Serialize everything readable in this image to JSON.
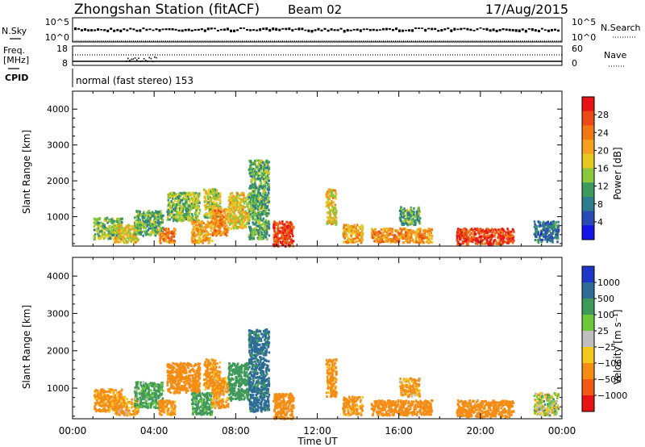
{
  "header": {
    "station": "Zhongshan Station (fitACF)",
    "beam": "Beam 02",
    "date": "17/Aug/2015"
  },
  "panels": {
    "nsky": {
      "label": "N.Sky",
      "tick_top": "10^5",
      "tick_bottom": "10^0"
    },
    "nsearch": {
      "label": "N.Search",
      "tick_top": "10^5",
      "tick_bottom": "10^0"
    },
    "freq": {
      "label_line1": "Freq.",
      "label_line2": "[MHz]",
      "tick_top": "18",
      "tick_bottom": "8"
    },
    "nave": {
      "label": "Nave",
      "tick_top": "60",
      "tick_bottom": "0"
    },
    "cpid": {
      "label": "CPID",
      "value": "normal (fast stereo) 153"
    }
  },
  "chart_data": [
    {
      "type": "heatmap",
      "title": "Power",
      "xlabel": "",
      "ylabel": "Slant Range [km]",
      "x_ticks": [
        "00:00",
        "04:00",
        "08:00",
        "12:00",
        "16:00",
        "20:00",
        "00:00"
      ],
      "y_ticks": [
        "1000",
        "2000",
        "3000",
        "4000"
      ],
      "ylim": [
        180,
        4500
      ],
      "colorbar": {
        "label": "Power [dB]",
        "ticks": [
          "4",
          "8",
          "12",
          "16",
          "20",
          "24",
          "28"
        ],
        "range": [
          0,
          32
        ],
        "colors": [
          "#1414e6",
          "#2a4ab5",
          "#2e7c8e",
          "#3d9a5c",
          "#8cc83c",
          "#e6c823",
          "#f5a01e",
          "#f07814",
          "#eb4a14",
          "#e61414"
        ]
      },
      "patches": [
        {
          "t": [
            1.0,
            2.4
          ],
          "r": [
            400,
            1000
          ],
          "v": 14
        },
        {
          "t": [
            2.0,
            3.2
          ],
          "r": [
            300,
            800
          ],
          "v": 18
        },
        {
          "t": [
            3.0,
            4.4
          ],
          "r": [
            500,
            1200
          ],
          "v": 12
        },
        {
          "t": [
            4.2,
            5.0
          ],
          "r": [
            300,
            700
          ],
          "v": 24
        },
        {
          "t": [
            4.6,
            6.2
          ],
          "r": [
            900,
            1700
          ],
          "v": 14
        },
        {
          "t": [
            5.8,
            6.8
          ],
          "r": [
            300,
            900
          ],
          "v": 20
        },
        {
          "t": [
            6.4,
            7.2
          ],
          "r": [
            1000,
            1800
          ],
          "v": 16
        },
        {
          "t": [
            6.8,
            7.6
          ],
          "r": [
            500,
            1300
          ],
          "v": 22
        },
        {
          "t": [
            7.6,
            8.6
          ],
          "r": [
            700,
            1700
          ],
          "v": 18
        },
        {
          "t": [
            8.6,
            9.6
          ],
          "r": [
            400,
            2600
          ],
          "v": 12
        },
        {
          "t": [
            9.8,
            10.8
          ],
          "r": [
            200,
            900
          ],
          "v": 28
        },
        {
          "t": [
            12.4,
            12.9
          ],
          "r": [
            800,
            1800
          ],
          "v": 18
        },
        {
          "t": [
            13.2,
            14.2
          ],
          "r": [
            300,
            800
          ],
          "v": 20
        },
        {
          "t": [
            14.6,
            17.6
          ],
          "r": [
            300,
            700
          ],
          "v": 22
        },
        {
          "t": [
            16.0,
            17.0
          ],
          "r": [
            800,
            1300
          ],
          "v": 12
        },
        {
          "t": [
            18.8,
            21.6
          ],
          "r": [
            250,
            700
          ],
          "v": 28
        },
        {
          "t": [
            22.6,
            23.8
          ],
          "r": [
            300,
            900
          ],
          "v": 8
        }
      ]
    },
    {
      "type": "heatmap",
      "title": "Velocity",
      "xlabel": "Time UT",
      "ylabel": "Slant Range [km]",
      "x_ticks": [
        "00:00",
        "04:00",
        "08:00",
        "12:00",
        "16:00",
        "20:00",
        "00:00"
      ],
      "y_ticks": [
        "1000",
        "2000",
        "3000",
        "4000"
      ],
      "ylim": [
        180,
        4500
      ],
      "colorbar": {
        "label": "Velocity [m s⁻¹]",
        "ticks": [
          "1000",
          "500",
          "100",
          "25",
          "−25",
          "−100",
          "−500",
          "−1000"
        ],
        "colors": [
          "#1f37c8",
          "#2e6c98",
          "#3f9a5a",
          "#6ec83c",
          "#bebebe",
          "#f5c81e",
          "#f58c14",
          "#f05a14",
          "#e61414"
        ]
      },
      "patches": [
        {
          "t": [
            1.0,
            2.4
          ],
          "r": [
            400,
            1000
          ],
          "v": -200
        },
        {
          "t": [
            2.0,
            3.2
          ],
          "r": [
            300,
            800
          ],
          "v": -150
        },
        {
          "t": [
            3.0,
            4.4
          ],
          "r": [
            500,
            1200
          ],
          "v": 150
        },
        {
          "t": [
            4.2,
            5.0
          ],
          "r": [
            300,
            700
          ],
          "v": -200
        },
        {
          "t": [
            4.6,
            6.2
          ],
          "r": [
            900,
            1700
          ],
          "v": -300
        },
        {
          "t": [
            5.8,
            6.8
          ],
          "r": [
            300,
            900
          ],
          "v": 200
        },
        {
          "t": [
            6.4,
            7.2
          ],
          "r": [
            1000,
            1800
          ],
          "v": -200
        },
        {
          "t": [
            6.8,
            7.6
          ],
          "r": [
            500,
            1300
          ],
          "v": -150
        },
        {
          "t": [
            7.6,
            8.6
          ],
          "r": [
            700,
            1700
          ],
          "v": 300
        },
        {
          "t": [
            8.6,
            9.6
          ],
          "r": [
            400,
            2600
          ],
          "v": 600
        },
        {
          "t": [
            9.8,
            10.8
          ],
          "r": [
            200,
            900
          ],
          "v": -300
        },
        {
          "t": [
            12.4,
            12.9
          ],
          "r": [
            800,
            1800
          ],
          "v": -200
        },
        {
          "t": [
            13.2,
            14.2
          ],
          "r": [
            300,
            800
          ],
          "v": -200
        },
        {
          "t": [
            14.6,
            17.6
          ],
          "r": [
            300,
            700
          ],
          "v": -250
        },
        {
          "t": [
            16.0,
            17.0
          ],
          "r": [
            800,
            1300
          ],
          "v": -150
        },
        {
          "t": [
            18.8,
            21.6
          ],
          "r": [
            250,
            700
          ],
          "v": -250
        },
        {
          "t": [
            22.6,
            23.8
          ],
          "r": [
            300,
            900
          ],
          "v": 0
        }
      ]
    }
  ]
}
